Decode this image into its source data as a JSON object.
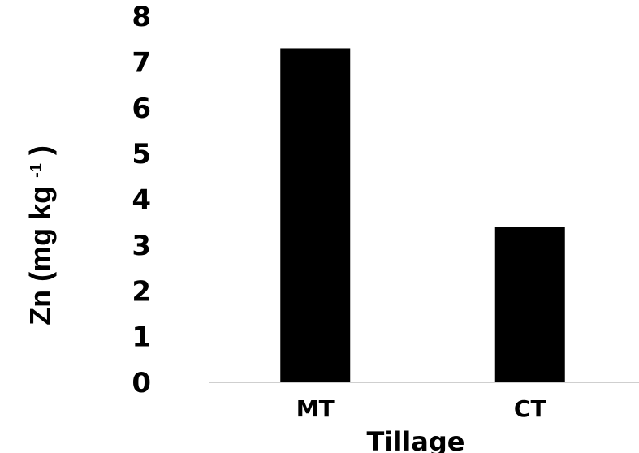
{
  "chart_data": {
    "type": "bar",
    "categories": [
      "MT",
      "CT"
    ],
    "values": [
      7.3,
      3.4
    ],
    "title": "",
    "xlabel": "Tillage",
    "ylabel": "Zn (mg kg",
    "ylabel_superscript": "-1",
    "ylabel_close": ")",
    "ylim": [
      0,
      8
    ],
    "yticks": [
      "0",
      "1",
      "2",
      "3",
      "4",
      "5",
      "6",
      "7",
      "8"
    ],
    "grid": false,
    "legend": "none",
    "bar_color": "#000000",
    "axis_color": "#bfbfbf"
  }
}
